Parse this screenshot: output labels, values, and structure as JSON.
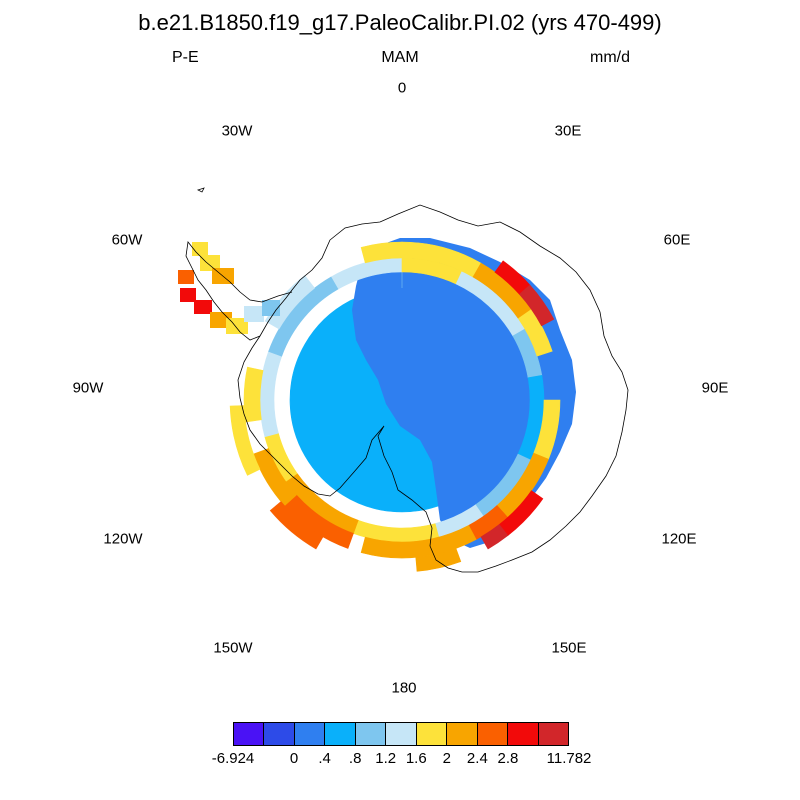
{
  "header": {
    "title": "b.e21.B1850.f19_g17.PaleoCalibr.PI.02 (yrs 470-499)",
    "variable": "P-E",
    "season": "MAM",
    "units": "mm/d"
  },
  "map": {
    "projection": "south-polar-stereographic",
    "region": "Antarctica",
    "longitude_labels": [
      "0",
      "30E",
      "60E",
      "90E",
      "120E",
      "150E",
      "180",
      "150W",
      "120W",
      "90W",
      "60W",
      "30W"
    ]
  },
  "colorbar": {
    "colors": [
      "#4a12f5",
      "#2d4be8",
      "#2f7ff0",
      "#0ab0fa",
      "#7ec6ef",
      "#c6e6f7",
      "#fde23a",
      "#f8a500",
      "#fa6000",
      "#f20a0a",
      "#d2262a"
    ],
    "labels": [
      "-6.924",
      "0",
      ".4",
      ".8",
      "1.2",
      "1.6",
      "2",
      "2.4",
      "2.8",
      "11.782"
    ]
  }
}
